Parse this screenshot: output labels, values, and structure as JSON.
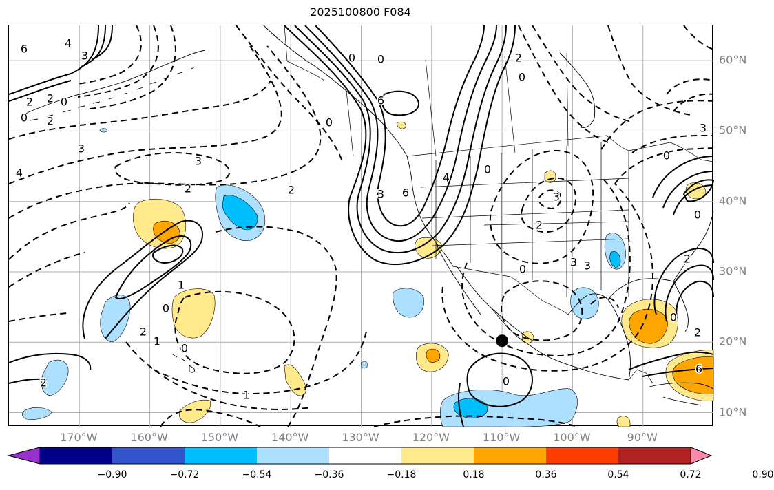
{
  "title": "2025100800 F084",
  "map": {
    "lon_labels": [
      "170°W",
      "160°W",
      "150°W",
      "140°W",
      "130°W",
      "120°W",
      "110°W",
      "100°W",
      "90°W"
    ],
    "lat_labels": [
      "60°N",
      "50°N",
      "40°N",
      "30°N",
      "20°N",
      "10°N"
    ],
    "contour_labels": [
      "6",
      "4",
      "3",
      "2",
      "2",
      "0",
      "0",
      "2",
      "3",
      "4",
      "3",
      "2",
      "2",
      "0",
      "0",
      "0",
      "1",
      "2",
      "1",
      "0",
      "0",
      "1",
      "2",
      "3",
      "4",
      "6",
      "6",
      "2",
      "0",
      "0",
      "2",
      "0",
      "3",
      "3",
      "3",
      "2",
      "0",
      "0",
      "2",
      "6",
      "3",
      "0",
      "0",
      "6",
      "2"
    ],
    "marker": {
      "name": "black-dot",
      "lon": -110,
      "lat": 20.2
    }
  },
  "colorbar": {
    "colors": [
      "#9b30d0",
      "#000088",
      "#3355cc",
      "#00bfff",
      "#ade0ff",
      "#ffffff",
      "#ffe98a",
      "#ffa500",
      "#ff3c00",
      "#b22222",
      "#ff88aa"
    ],
    "tick_labels": [
      "−0.90",
      "−0.72",
      "−0.54",
      "−0.36",
      "−0.18",
      "0.18",
      "0.36",
      "0.54",
      "0.72",
      "0.90"
    ]
  }
}
